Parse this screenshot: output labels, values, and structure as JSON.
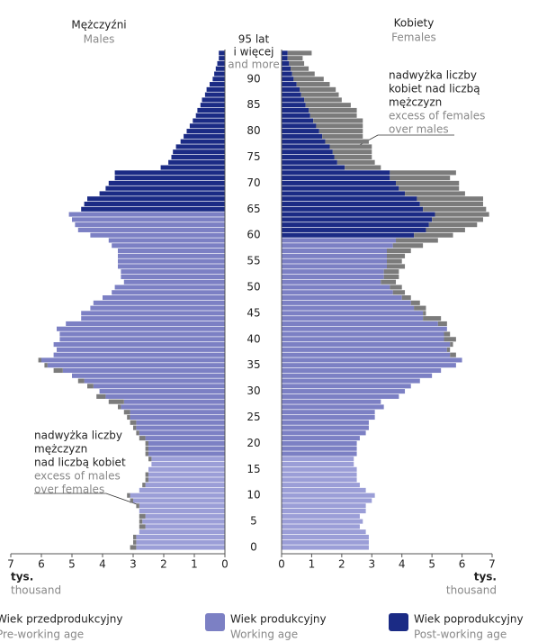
{
  "chart_data": {
    "type": "pyramid",
    "left_title": "Mężczyźni",
    "left_title_en": "Males",
    "right_title": "Kobiety",
    "right_title_en": "Females",
    "unit": "tys.",
    "unit_en": "thousand",
    "categories": [
      "0",
      null,
      null,
      null,
      null,
      "5",
      null,
      null,
      null,
      null,
      "10",
      null,
      null,
      null,
      null,
      "15",
      null,
      null,
      null,
      null,
      "20",
      null,
      null,
      null,
      null,
      "25",
      null,
      null,
      null,
      null,
      "30",
      null,
      null,
      null,
      null,
      "35",
      null,
      null,
      null,
      null,
      "40",
      null,
      null,
      null,
      null,
      "45",
      null,
      null,
      null,
      null,
      "50",
      null,
      null,
      null,
      null,
      "55",
      null,
      null,
      null,
      null,
      "60",
      null,
      null,
      null,
      null,
      "65",
      null,
      null,
      null,
      null,
      "70",
      null,
      null,
      null,
      null,
      "75",
      null,
      null,
      null,
      null,
      "80",
      null,
      null,
      null,
      null,
      "85",
      null,
      null,
      null,
      null,
      "90",
      null,
      null,
      null,
      null,
      "95 lat"
    ],
    "top_label_extra": "i więcej",
    "top_label_extra_en": "and more",
    "xlim": [
      0,
      7
    ],
    "xticks": [
      0,
      1,
      2,
      3,
      4,
      5,
      6,
      7
    ],
    "groups": [
      {
        "name": "Wiek przedprodukcyjny",
        "name_en": "Pre-working age",
        "color": "#9b9ed7"
      },
      {
        "name": "Wiek produkcyjny",
        "name_en": "Working age",
        "color": "#7c80c4"
      },
      {
        "name": "Wiek poprodukcyjny",
        "name_en": "Post-working age",
        "color": "#1b2b85"
      }
    ],
    "excess_color": "#7b7b7b",
    "males": {
      "group_starts": [
        0,
        18,
        65
      ],
      "values": [
        3.1,
        3.0,
        3.0,
        2.8,
        2.8,
        2.8,
        2.8,
        2.8,
        2.9,
        3.1,
        3.2,
        2.8,
        2.7,
        2.6,
        2.6,
        2.5,
        2.4,
        2.5,
        2.6,
        2.6,
        2.6,
        2.8,
        2.9,
        3.0,
        3.1,
        3.2,
        3.3,
        3.5,
        3.8,
        4.2,
        4.1,
        4.5,
        4.8,
        5.0,
        5.6,
        5.9,
        6.1,
        5.6,
        5.5,
        5.6,
        5.4,
        5.4,
        5.5,
        5.2,
        4.7,
        4.7,
        4.4,
        4.3,
        4.0,
        3.7,
        3.6,
        3.3,
        3.4,
        3.4,
        3.5,
        3.5,
        3.5,
        3.5,
        3.7,
        3.8,
        4.4,
        4.8,
        4.9,
        5.0,
        5.1,
        4.7,
        4.6,
        4.5,
        4.1,
        3.9,
        3.8,
        3.6,
        3.6,
        2.1,
        1.85,
        1.75,
        1.7,
        1.6,
        1.45,
        1.35,
        1.25,
        1.15,
        1.05,
        0.95,
        0.9,
        0.8,
        0.75,
        0.65,
        0.6,
        0.5,
        0.4,
        0.35,
        0.3,
        0.25,
        0.2,
        0.2
      ]
    },
    "females": {
      "group_starts": [
        0,
        18,
        60
      ],
      "values": [
        2.9,
        2.9,
        2.9,
        2.8,
        2.6,
        2.7,
        2.6,
        2.8,
        2.8,
        3.0,
        3.1,
        2.8,
        2.6,
        2.5,
        2.5,
        2.5,
        2.4,
        2.4,
        2.5,
        2.5,
        2.5,
        2.6,
        2.8,
        2.9,
        2.9,
        3.1,
        3.1,
        3.4,
        3.3,
        3.9,
        4.1,
        4.3,
        4.6,
        5.0,
        5.3,
        5.8,
        6.0,
        5.8,
        5.6,
        5.7,
        5.8,
        5.6,
        5.5,
        5.5,
        5.3,
        4.8,
        4.8,
        4.6,
        4.3,
        4.1,
        4.0,
        3.8,
        3.9,
        3.9,
        4.1,
        4.0,
        4.1,
        4.3,
        4.7,
        5.2,
        5.7,
        6.1,
        6.5,
        6.7,
        6.9,
        6.8,
        6.7,
        6.7,
        6.1,
        5.9,
        5.9,
        5.6,
        5.8,
        3.3,
        3.1,
        3.0,
        3.0,
        3.0,
        2.9,
        2.7,
        2.7,
        2.7,
        2.7,
        2.5,
        2.5,
        2.3,
        2.0,
        1.9,
        1.8,
        1.6,
        1.4,
        1.1,
        0.9,
        0.75,
        0.7,
        1.0
      ]
    },
    "annotations": [
      {
        "lines": [
          "nadwyżka liczby",
          "kobiet nad liczbą",
          "mężczyzn"
        ],
        "lines_en": [
          "excess of females",
          "over males"
        ]
      },
      {
        "lines": [
          "nadwyżka liczby",
          "mężczyzn",
          "nad liczbą kobiet"
        ],
        "lines_en": [
          "excess of males",
          "over females"
        ]
      }
    ]
  }
}
